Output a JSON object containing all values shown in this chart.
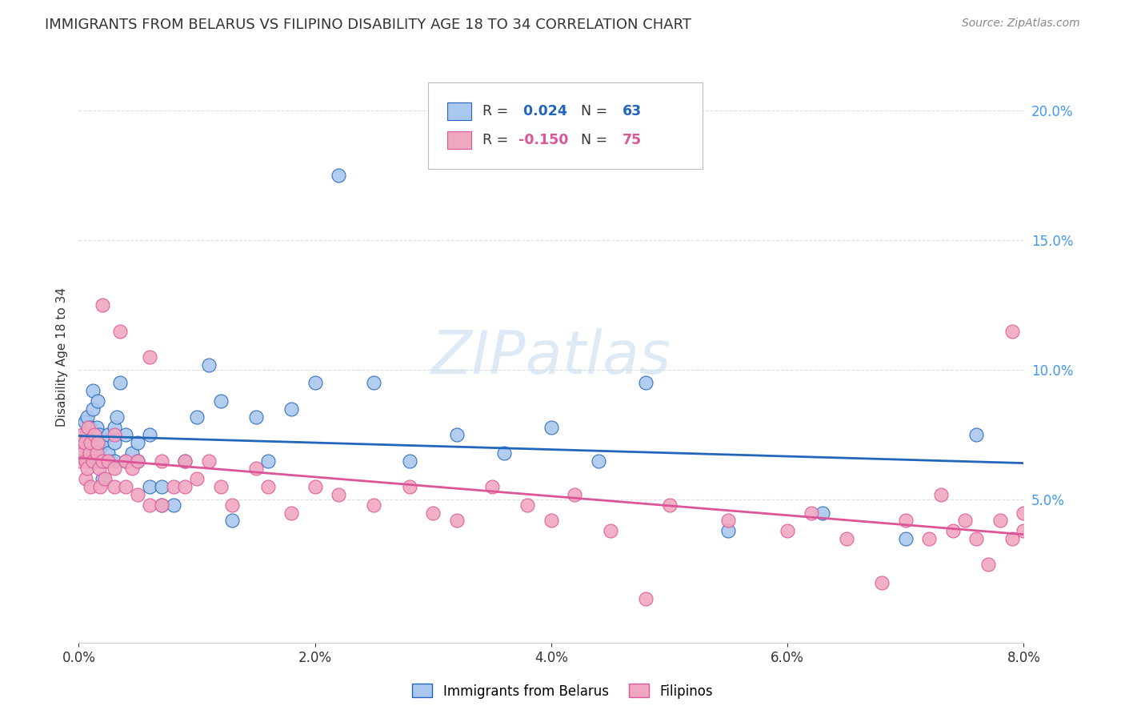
{
  "title": "IMMIGRANTS FROM BELARUS VS FILIPINO DISABILITY AGE 18 TO 34 CORRELATION CHART",
  "source": "Source: ZipAtlas.com",
  "ylabel": "Disability Age 18 to 34",
  "xlim": [
    0.0,
    0.08
  ],
  "ylim": [
    -0.005,
    0.215
  ],
  "series1_color": "#aac8ee",
  "series2_color": "#f0a8c0",
  "line1_color": "#2266bb",
  "line2_color": "#dd5599",
  "background_color": "#ffffff",
  "grid_color": "#dddddd",
  "series1_label": "Immigrants from Belarus",
  "series2_label": "Filipinos",
  "legend_r1": " 0.024",
  "legend_n1": "63",
  "legend_r2": "-0.150",
  "legend_n2": "75",
  "watermark": "ZIPatlas",
  "ytick_color": "#4499ee",
  "xtick_color": "#4499ee",
  "series1_x": [
    0.0002,
    0.0003,
    0.0004,
    0.0005,
    0.0006,
    0.0006,
    0.0007,
    0.0008,
    0.0009,
    0.001,
    0.001,
    0.001,
    0.0012,
    0.0012,
    0.0013,
    0.0014,
    0.0015,
    0.0015,
    0.0016,
    0.0017,
    0.0018,
    0.002,
    0.002,
    0.002,
    0.0022,
    0.0025,
    0.0025,
    0.003,
    0.003,
    0.003,
    0.0032,
    0.0035,
    0.004,
    0.004,
    0.0045,
    0.005,
    0.005,
    0.006,
    0.006,
    0.007,
    0.007,
    0.008,
    0.009,
    0.01,
    0.011,
    0.012,
    0.013,
    0.015,
    0.016,
    0.018,
    0.02,
    0.022,
    0.025,
    0.028,
    0.032,
    0.036,
    0.04,
    0.044,
    0.048,
    0.055,
    0.063,
    0.07,
    0.076
  ],
  "series1_y": [
    0.072,
    0.068,
    0.075,
    0.08,
    0.065,
    0.07,
    0.082,
    0.076,
    0.068,
    0.072,
    0.065,
    0.078,
    0.085,
    0.092,
    0.068,
    0.072,
    0.065,
    0.078,
    0.088,
    0.075,
    0.07,
    0.065,
    0.072,
    0.058,
    0.065,
    0.068,
    0.075,
    0.072,
    0.065,
    0.078,
    0.082,
    0.095,
    0.065,
    0.075,
    0.068,
    0.072,
    0.065,
    0.055,
    0.075,
    0.048,
    0.055,
    0.048,
    0.065,
    0.082,
    0.102,
    0.088,
    0.042,
    0.082,
    0.065,
    0.085,
    0.095,
    0.175,
    0.095,
    0.065,
    0.075,
    0.068,
    0.078,
    0.065,
    0.095,
    0.038,
    0.045,
    0.035,
    0.075
  ],
  "series2_x": [
    0.0001,
    0.0002,
    0.0003,
    0.0004,
    0.0005,
    0.0006,
    0.0006,
    0.0007,
    0.0008,
    0.0009,
    0.001,
    0.001,
    0.0012,
    0.0013,
    0.0015,
    0.0016,
    0.0017,
    0.0018,
    0.002,
    0.002,
    0.0022,
    0.0025,
    0.003,
    0.003,
    0.003,
    0.0035,
    0.004,
    0.004,
    0.0045,
    0.005,
    0.005,
    0.006,
    0.006,
    0.007,
    0.007,
    0.008,
    0.009,
    0.009,
    0.01,
    0.011,
    0.012,
    0.013,
    0.015,
    0.016,
    0.018,
    0.02,
    0.022,
    0.025,
    0.028,
    0.03,
    0.032,
    0.035,
    0.038,
    0.04,
    0.042,
    0.045,
    0.048,
    0.05,
    0.055,
    0.06,
    0.062,
    0.065,
    0.068,
    0.07,
    0.072,
    0.073,
    0.074,
    0.075,
    0.076,
    0.077,
    0.078,
    0.079,
    0.079,
    0.08,
    0.08
  ],
  "series2_y": [
    0.065,
    0.07,
    0.075,
    0.068,
    0.072,
    0.065,
    0.058,
    0.062,
    0.078,
    0.068,
    0.072,
    0.055,
    0.065,
    0.075,
    0.068,
    0.072,
    0.062,
    0.055,
    0.065,
    0.125,
    0.058,
    0.065,
    0.062,
    0.055,
    0.075,
    0.115,
    0.065,
    0.055,
    0.062,
    0.052,
    0.065,
    0.048,
    0.105,
    0.048,
    0.065,
    0.055,
    0.055,
    0.065,
    0.058,
    0.065,
    0.055,
    0.048,
    0.062,
    0.055,
    0.045,
    0.055,
    0.052,
    0.048,
    0.055,
    0.045,
    0.042,
    0.055,
    0.048,
    0.042,
    0.052,
    0.038,
    0.012,
    0.048,
    0.042,
    0.038,
    0.045,
    0.035,
    0.018,
    0.042,
    0.035,
    0.052,
    0.038,
    0.042,
    0.035,
    0.025,
    0.042,
    0.115,
    0.035,
    0.038,
    0.045
  ]
}
